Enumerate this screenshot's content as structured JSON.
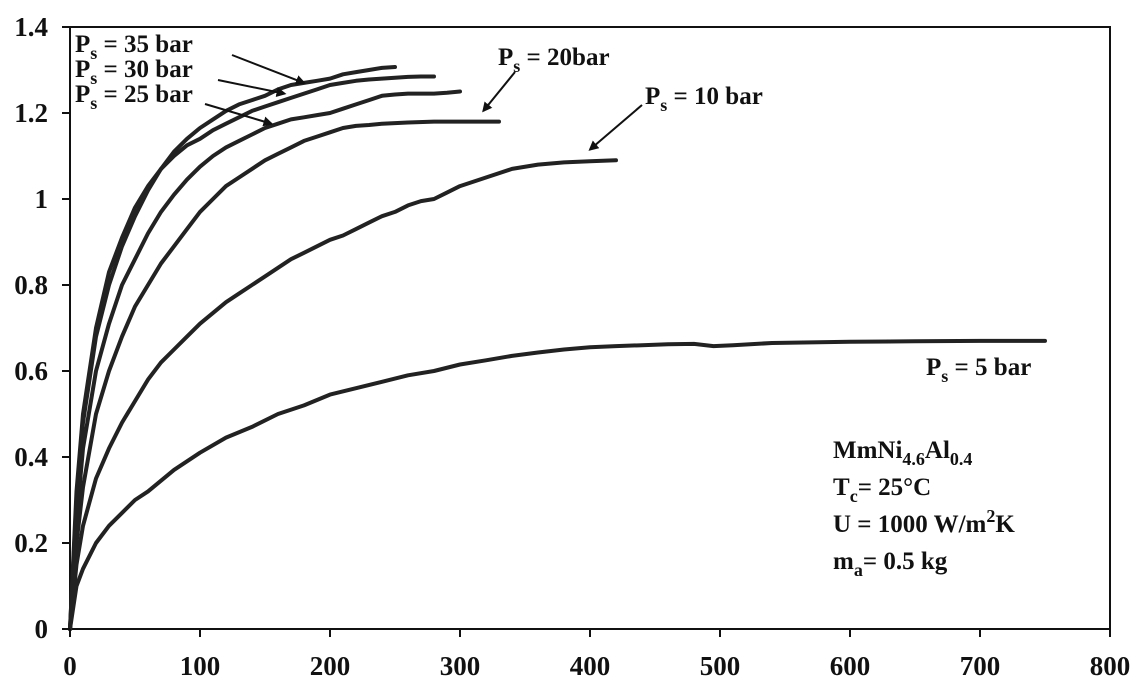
{
  "chart_data": {
    "type": "line",
    "title": "",
    "xlabel": "",
    "ylabel": "",
    "xlim": [
      0,
      800
    ],
    "ylim": [
      0,
      1.4
    ],
    "x_ticks": [
      0,
      100,
      200,
      300,
      400,
      500,
      600,
      700,
      800
    ],
    "y_ticks": [
      0,
      0.2,
      0.4,
      0.6,
      0.8,
      1,
      1.2,
      1.4
    ],
    "x_tick_labels": [
      "0",
      "100",
      "200",
      "300",
      "400",
      "500",
      "600",
      "700",
      "800"
    ],
    "y_tick_labels": [
      "0",
      "0.2",
      "0.4",
      "0.6",
      "0.8",
      "1",
      "1.2",
      "1.4"
    ],
    "grid": false,
    "line_color": "#222222",
    "series": [
      {
        "name": "Ps = 35 bar",
        "label": {
          "prefix": "P",
          "sub": "s",
          "suffix": " = 35 bar"
        },
        "x": [
          0,
          5,
          10,
          20,
          30,
          40,
          50,
          60,
          70,
          80,
          90,
          100,
          110,
          120,
          130,
          140,
          150,
          160,
          170,
          180,
          190,
          200,
          210,
          220,
          230,
          240,
          250
        ],
        "y": [
          0,
          0.32,
          0.5,
          0.7,
          0.83,
          0.91,
          0.98,
          1.03,
          1.07,
          1.11,
          1.14,
          1.165,
          1.185,
          1.205,
          1.22,
          1.23,
          1.24,
          1.255,
          1.265,
          1.27,
          1.275,
          1.28,
          1.29,
          1.295,
          1.3,
          1.305,
          1.307
        ]
      },
      {
        "name": "Ps = 30 bar",
        "label": {
          "prefix": "P",
          "sub": "s",
          "suffix": " = 30 bar"
        },
        "x": [
          0,
          5,
          10,
          20,
          30,
          40,
          50,
          60,
          70,
          80,
          90,
          100,
          110,
          120,
          130,
          140,
          150,
          160,
          170,
          180,
          190,
          200,
          210,
          220,
          230,
          240,
          250,
          260,
          270,
          280
        ],
        "y": [
          0,
          0.3,
          0.48,
          0.68,
          0.8,
          0.89,
          0.96,
          1.02,
          1.07,
          1.1,
          1.125,
          1.14,
          1.16,
          1.175,
          1.19,
          1.205,
          1.215,
          1.225,
          1.235,
          1.245,
          1.255,
          1.265,
          1.27,
          1.275,
          1.278,
          1.28,
          1.282,
          1.284,
          1.285,
          1.285
        ]
      },
      {
        "name": "Ps = 25 bar",
        "label": {
          "prefix": "P",
          "sub": "s",
          "suffix": " = 25 bar"
        },
        "x": [
          0,
          5,
          10,
          20,
          30,
          40,
          50,
          60,
          70,
          80,
          90,
          100,
          110,
          120,
          130,
          140,
          150,
          160,
          170,
          180,
          190,
          200,
          210,
          220,
          230,
          240,
          250,
          260,
          270,
          280,
          290,
          300
        ],
        "y": [
          0,
          0.25,
          0.42,
          0.6,
          0.71,
          0.8,
          0.86,
          0.92,
          0.97,
          1.01,
          1.045,
          1.075,
          1.1,
          1.12,
          1.135,
          1.15,
          1.165,
          1.175,
          1.185,
          1.19,
          1.195,
          1.2,
          1.21,
          1.22,
          1.23,
          1.24,
          1.243,
          1.245,
          1.245,
          1.245,
          1.247,
          1.25
        ]
      },
      {
        "name": "Ps = 20bar",
        "label": {
          "prefix": "P",
          "sub": "s",
          "suffix": " = 20bar"
        },
        "x": [
          0,
          5,
          10,
          20,
          30,
          40,
          50,
          60,
          70,
          80,
          90,
          100,
          110,
          120,
          130,
          140,
          150,
          160,
          170,
          180,
          190,
          200,
          210,
          220,
          230,
          240,
          260,
          280,
          300,
          330
        ],
        "y": [
          0,
          0.2,
          0.33,
          0.5,
          0.6,
          0.68,
          0.75,
          0.8,
          0.85,
          0.89,
          0.93,
          0.97,
          1.0,
          1.03,
          1.05,
          1.07,
          1.09,
          1.105,
          1.12,
          1.135,
          1.145,
          1.155,
          1.165,
          1.17,
          1.172,
          1.175,
          1.178,
          1.18,
          1.18,
          1.18
        ]
      },
      {
        "name": "Ps = 10 bar",
        "label": {
          "prefix": "P",
          "sub": "s",
          "suffix": " = 10 bar"
        },
        "x": [
          0,
          5,
          10,
          20,
          30,
          40,
          50,
          60,
          70,
          80,
          90,
          100,
          110,
          120,
          130,
          140,
          150,
          160,
          170,
          180,
          190,
          200,
          210,
          220,
          230,
          240,
          250,
          260,
          270,
          280,
          290,
          300,
          320,
          340,
          360,
          380,
          400,
          420
        ],
        "y": [
          0,
          0.15,
          0.24,
          0.35,
          0.42,
          0.48,
          0.53,
          0.58,
          0.62,
          0.65,
          0.68,
          0.71,
          0.735,
          0.76,
          0.78,
          0.8,
          0.82,
          0.84,
          0.86,
          0.875,
          0.89,
          0.905,
          0.915,
          0.93,
          0.945,
          0.96,
          0.97,
          0.985,
          0.995,
          1.0,
          1.015,
          1.03,
          1.05,
          1.07,
          1.08,
          1.085,
          1.088,
          1.09
        ]
      },
      {
        "name": "Ps = 5 bar",
        "label": {
          "prefix": "P",
          "sub": "s",
          "suffix": " = 5 bar"
        },
        "x": [
          0,
          5,
          10,
          20,
          30,
          40,
          50,
          60,
          80,
          100,
          120,
          140,
          160,
          180,
          200,
          220,
          240,
          260,
          280,
          300,
          320,
          340,
          360,
          380,
          400,
          420,
          440,
          460,
          480,
          495,
          510,
          540,
          600,
          650,
          700,
          750
        ],
        "y": [
          0,
          0.1,
          0.14,
          0.2,
          0.24,
          0.27,
          0.3,
          0.32,
          0.37,
          0.41,
          0.445,
          0.47,
          0.5,
          0.52,
          0.545,
          0.56,
          0.575,
          0.59,
          0.6,
          0.615,
          0.625,
          0.635,
          0.643,
          0.65,
          0.655,
          0.658,
          0.66,
          0.662,
          0.663,
          0.658,
          0.66,
          0.665,
          0.668,
          0.669,
          0.67,
          0.67
        ]
      }
    ],
    "annotation_lines": [
      {
        "prefix": "MmNi",
        "sub": "4.6",
        "mid": "Al",
        "sub2": "0.4",
        "suffix": ""
      },
      {
        "prefix": "T",
        "sub": "c",
        "mid": "= 25°C",
        "sub2": "",
        "suffix": ""
      },
      {
        "prefix": "U = 1000 W/m",
        "sup": "2",
        "mid": "K",
        "sub": "",
        "sub2": "",
        "suffix": ""
      },
      {
        "prefix": "m",
        "sub": "a",
        "mid": "= 0.5 kg",
        "sub2": "",
        "suffix": ""
      }
    ]
  }
}
